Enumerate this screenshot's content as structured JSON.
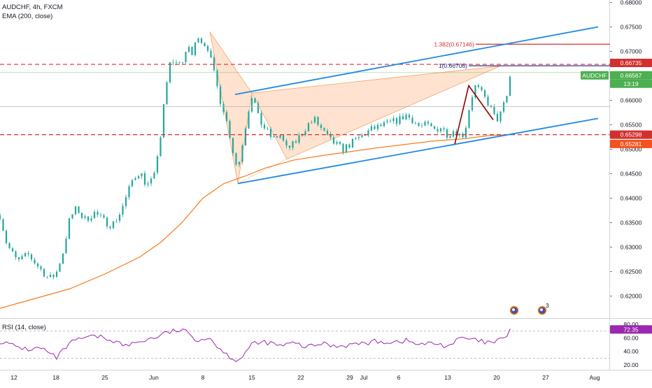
{
  "header": {
    "title": "AUDCHF, 4h, FXCM",
    "ema_label": "EMA (200, close)",
    "rsi_label": "RSI (14, close)"
  },
  "colors": {
    "background": "#ffffff",
    "up_candle": "#26a69a",
    "down_candle": "#26a69a",
    "ema": "#f57c1f",
    "trendline": "#1e88e5",
    "pattern_fill": "#ffccaa",
    "zigzag": "#8b0000",
    "resistance": "#d32f2f",
    "rsi": "#9c27b0",
    "last_price": "#4caf50"
  },
  "chart_data": [
    {
      "type": "candlestick",
      "panel": "price",
      "symbol": "AUDCHF",
      "timeframe": "4h",
      "source": "FXCM",
      "xlim_days": [
        10,
        97
      ],
      "ylim": [
        0.6155,
        0.6805
      ],
      "y_ticks": [
        "0.68000",
        "0.67500",
        "0.67000",
        "0.66500",
        "0.66000",
        "0.65500",
        "0.65000",
        "0.64500",
        "0.64000",
        "0.63500",
        "0.63000",
        "0.62500",
        "0.62000"
      ],
      "x_ticks": [
        "12",
        "18",
        "25",
        "Jun",
        "8",
        "15",
        "22",
        "29",
        "Jul",
        "6",
        "13",
        "20",
        "27",
        "Aug"
      ],
      "close_path": [
        [
          10.0,
          0.6365
        ],
        [
          11.0,
          0.6305
        ],
        [
          12.5,
          0.627
        ],
        [
          14.0,
          0.6285
        ],
        [
          15.5,
          0.626
        ],
        [
          17.0,
          0.6235
        ],
        [
          18.0,
          0.6245
        ],
        [
          19.0,
          0.629
        ],
        [
          20.0,
          0.636
        ],
        [
          21.0,
          0.638
        ],
        [
          22.0,
          0.6355
        ],
        [
          23.5,
          0.637
        ],
        [
          25.0,
          0.6352
        ],
        [
          26.0,
          0.6345
        ],
        [
          27.0,
          0.6365
        ],
        [
          28.0,
          0.64
        ],
        [
          29.0,
          0.644
        ],
        [
          30.0,
          0.6455
        ],
        [
          31.0,
          0.6425
        ],
        [
          32.0,
          0.644
        ],
        [
          32.5,
          0.649
        ],
        [
          33.0,
          0.653
        ],
        [
          33.5,
          0.66
        ],
        [
          34.0,
          0.665
        ],
        [
          34.5,
          0.669
        ],
        [
          35.0,
          0.667
        ],
        [
          35.5,
          0.6685
        ],
        [
          36.0,
          0.6675
        ],
        [
          36.5,
          0.669
        ],
        [
          37.0,
          0.671
        ],
        [
          37.5,
          0.669
        ],
        [
          38.0,
          0.672
        ],
        [
          38.5,
          0.674
        ],
        [
          39.0,
          0.671
        ],
        [
          39.5,
          0.672
        ],
        [
          40.0,
          0.669
        ],
        [
          40.5,
          0.666
        ],
        [
          41.0,
          0.663
        ],
        [
          41.5,
          0.66
        ],
        [
          42.0,
          0.658
        ],
        [
          42.5,
          0.655
        ],
        [
          43.0,
          0.652
        ],
        [
          43.5,
          0.648
        ],
        [
          44.0,
          0.646
        ],
        [
          44.5,
          0.65
        ],
        [
          45.0,
          0.654
        ],
        [
          45.5,
          0.658
        ],
        [
          46.0,
          0.661
        ],
        [
          46.5,
          0.659
        ],
        [
          47.0,
          0.656
        ],
        [
          48.0,
          0.654
        ],
        [
          49.0,
          0.652
        ],
        [
          50.0,
          0.653
        ],
        [
          51.0,
          0.65
        ],
        [
          52.0,
          0.651
        ],
        [
          53.0,
          0.653
        ],
        [
          54.0,
          0.655
        ],
        [
          55.0,
          0.656
        ],
        [
          56.0,
          0.654
        ],
        [
          57.0,
          0.652
        ],
        [
          58.0,
          0.651
        ],
        [
          59.0,
          0.65
        ],
        [
          60.0,
          0.651
        ],
        [
          61.0,
          0.652
        ],
        [
          62.0,
          0.653
        ],
        [
          63.0,
          0.654
        ],
        [
          64.0,
          0.6545
        ],
        [
          65.0,
          0.655
        ],
        [
          66.0,
          0.6555
        ],
        [
          67.0,
          0.656
        ],
        [
          68.0,
          0.657
        ],
        [
          69.0,
          0.656
        ],
        [
          70.0,
          0.6545
        ],
        [
          71.0,
          0.655
        ],
        [
          72.0,
          0.654
        ],
        [
          73.0,
          0.6545
        ],
        [
          74.0,
          0.653
        ],
        [
          75.0,
          0.654
        ],
        [
          76.0,
          0.6525
        ],
        [
          76.5,
          0.654
        ],
        [
          77.0,
          0.658
        ],
        [
          77.5,
          0.661
        ],
        [
          78.0,
          0.663
        ],
        [
          78.5,
          0.662
        ],
        [
          79.0,
          0.661
        ],
        [
          79.5,
          0.66
        ],
        [
          80.0,
          0.659
        ],
        [
          80.5,
          0.657
        ],
        [
          81.0,
          0.656
        ],
        [
          81.5,
          0.657
        ],
        [
          82.0,
          0.659
        ],
        [
          82.5,
          0.661
        ],
        [
          83.0,
          0.6657
        ]
      ],
      "ema200": [
        [
          10.0,
          0.6175
        ],
        [
          15.0,
          0.6195
        ],
        [
          20.0,
          0.6215
        ],
        [
          25.0,
          0.6245
        ],
        [
          30.0,
          0.628
        ],
        [
          33.0,
          0.631
        ],
        [
          36.0,
          0.635
        ],
        [
          39.0,
          0.64
        ],
        [
          42.0,
          0.643
        ],
        [
          45.0,
          0.6445
        ],
        [
          48.0,
          0.6462
        ],
        [
          52.0,
          0.6478
        ],
        [
          56.0,
          0.6487
        ],
        [
          60.0,
          0.6495
        ],
        [
          64.0,
          0.6503
        ],
        [
          68.0,
          0.651
        ],
        [
          72.0,
          0.6517
        ],
        [
          76.0,
          0.6521
        ],
        [
          80.0,
          0.6528
        ],
        [
          83.0,
          0.653
        ]
      ],
      "trendlines": [
        {
          "from": [
            43.6,
            0.6612
          ],
          "to": [
            95.5,
            0.675
          ]
        },
        {
          "from": [
            44.0,
            0.643
          ],
          "to": [
            95.5,
            0.6563
          ]
        }
      ],
      "harmonic_pattern": {
        "points": [
          [
            40.0,
            0.674
          ],
          [
            44.0,
            0.643
          ],
          [
            46.0,
            0.6615
          ],
          [
            51.0,
            0.648
          ],
          [
            81.5,
            0.667
          ]
        ]
      },
      "zigzag": {
        "points": [
          [
            75.0,
            0.651
          ],
          [
            77.0,
            0.663
          ],
          [
            80.5,
            0.656
          ]
        ]
      },
      "fib_levels": [
        {
          "label": "1.382(0.67146)",
          "value": 0.67146
        },
        {
          "label": "1(0.66706)",
          "value": 0.66706
        }
      ],
      "horizontal_levels": [
        {
          "value": 0.66735,
          "style": "dashed-red"
        },
        {
          "value": 0.65298,
          "style": "dashed-red"
        },
        {
          "value": 0.66567,
          "style": "solid-green"
        },
        {
          "value": 0.6587,
          "style": "solid-grey"
        }
      ],
      "price_labels": [
        {
          "text": "0.66735",
          "value": 0.66735,
          "color": "#d32f2f"
        },
        {
          "text": "AUDCHF",
          "value": 0.66567,
          "color": "#4caf50"
        },
        {
          "text": "0.66567",
          "value": 0.66567,
          "color": "#4caf50"
        },
        {
          "text": "13:19",
          "value": 0.66567,
          "color": "#4caf50"
        },
        {
          "text": "0.65298",
          "value": 0.65298,
          "color": "#d32f2f"
        },
        {
          "text": "0.65281",
          "value": 0.65281,
          "color": "#f4511e"
        }
      ],
      "events": [
        {
          "day": 83.5,
          "count": ""
        },
        {
          "day": 87.5,
          "count": "3"
        }
      ]
    },
    {
      "type": "line",
      "panel": "rsi",
      "name": "RSI (14, close)",
      "ylim": [
        14,
        86
      ],
      "y_ticks": [
        "80.00",
        "60.00",
        "40.00",
        "20.00"
      ],
      "bands": [
        70,
        30
      ],
      "last_value": "72.35",
      "x": [
        10,
        12,
        14,
        16,
        18,
        20,
        22,
        24,
        26,
        28,
        30,
        32,
        34,
        36,
        38,
        40,
        42,
        44,
        46,
        48,
        50,
        52,
        54,
        56,
        58,
        60,
        62,
        64,
        66,
        68,
        70,
        72,
        74,
        76,
        78,
        80,
        82,
        83
      ],
      "values": [
        55,
        48,
        43,
        45,
        30,
        52,
        60,
        62,
        57,
        48,
        55,
        60,
        68,
        72,
        58,
        60,
        38,
        26,
        50,
        54,
        48,
        52,
        46,
        52,
        48,
        50,
        52,
        55,
        54,
        56,
        50,
        52,
        48,
        60,
        56,
        52,
        58,
        72.35
      ]
    }
  ]
}
